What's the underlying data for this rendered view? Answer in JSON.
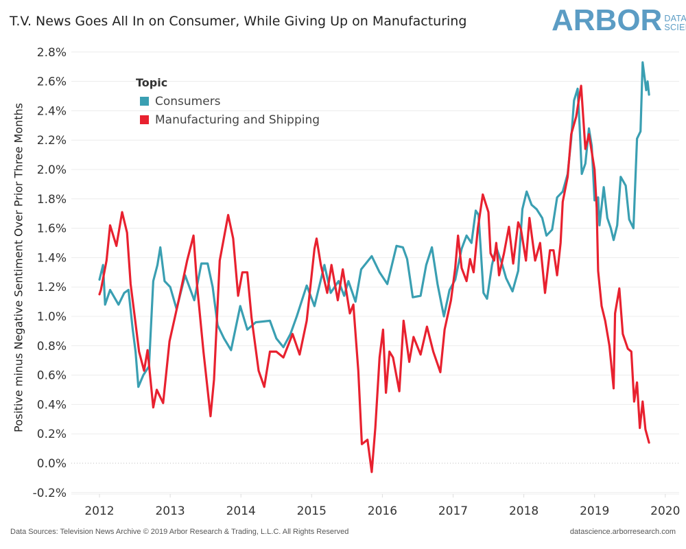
{
  "header": {
    "title": "T.V. News Goes All In on Consumer, While Giving Up on Manufacturing",
    "logo_main": "ARBOR",
    "logo_line1": "DATA",
    "logo_line2": "SCIENCE",
    "logo_color": "#5b9cc4"
  },
  "footer": {
    "source": "Data Sources: Television News Archive © 2019 Arbor Research & Trading, L.L.C. All Rights Reserved",
    "site": "datascience.arborresearch.com"
  },
  "chart_data": {
    "type": "line",
    "title": "T.V. News Goes All In on Consumer, While Giving Up on Manufacturing",
    "xlabel": "",
    "ylabel": "Positive minus Negative Sentiment Over Prior Three Months",
    "xlim": [
      2011.6,
      2020.2
    ],
    "ylim": [
      -0.2,
      2.8
    ],
    "x_ticks": [
      "2012",
      "2013",
      "2014",
      "2015",
      "2016",
      "2017",
      "2018",
      "2019",
      "2020"
    ],
    "y_ticks": [
      "-0.2%",
      "0.0%",
      "0.2%",
      "0.4%",
      "0.6%",
      "0.8%",
      "1.0%",
      "1.2%",
      "1.4%",
      "1.6%",
      "1.8%",
      "2.0%",
      "2.2%",
      "2.4%",
      "2.6%",
      "2.8%"
    ],
    "grid": true,
    "legend": {
      "title": "Topic",
      "placement": "top-left"
    },
    "series": [
      {
        "name": "Consumers",
        "color": "#3a9fb2",
        "points": [
          [
            2012.0,
            1.25
          ],
          [
            2012.05,
            1.35
          ],
          [
            2012.08,
            1.08
          ],
          [
            2012.15,
            1.18
          ],
          [
            2012.27,
            1.08
          ],
          [
            2012.35,
            1.16
          ],
          [
            2012.41,
            1.18
          ],
          [
            2012.47,
            0.91
          ],
          [
            2012.51,
            0.76
          ],
          [
            2012.55,
            0.52
          ],
          [
            2012.62,
            0.6
          ],
          [
            2012.7,
            0.66
          ],
          [
            2012.76,
            1.24
          ],
          [
            2012.82,
            1.35
          ],
          [
            2012.86,
            1.47
          ],
          [
            2012.92,
            1.24
          ],
          [
            2013.0,
            1.2
          ],
          [
            2013.09,
            1.05
          ],
          [
            2013.21,
            1.28
          ],
          [
            2013.34,
            1.11
          ],
          [
            2013.44,
            1.36
          ],
          [
            2013.53,
            1.36
          ],
          [
            2013.6,
            1.2
          ],
          [
            2013.67,
            0.94
          ],
          [
            2013.76,
            0.85
          ],
          [
            2013.86,
            0.77
          ],
          [
            2013.99,
            1.07
          ],
          [
            2014.09,
            0.91
          ],
          [
            2014.21,
            0.96
          ],
          [
            2014.41,
            0.97
          ],
          [
            2014.5,
            0.85
          ],
          [
            2014.6,
            0.79
          ],
          [
            2014.7,
            0.88
          ],
          [
            2014.79,
            1.0
          ],
          [
            2014.93,
            1.21
          ],
          [
            2015.04,
            1.07
          ],
          [
            2015.18,
            1.35
          ],
          [
            2015.27,
            1.16
          ],
          [
            2015.38,
            1.24
          ],
          [
            2015.46,
            1.14
          ],
          [
            2015.52,
            1.24
          ],
          [
            2015.62,
            1.1
          ],
          [
            2015.7,
            1.32
          ],
          [
            2015.85,
            1.41
          ],
          [
            2015.96,
            1.3
          ],
          [
            2016.07,
            1.22
          ],
          [
            2016.2,
            1.48
          ],
          [
            2016.29,
            1.47
          ],
          [
            2016.35,
            1.39
          ],
          [
            2016.43,
            1.13
          ],
          [
            2016.54,
            1.14
          ],
          [
            2016.62,
            1.35
          ],
          [
            2016.7,
            1.47
          ],
          [
            2016.78,
            1.22
          ],
          [
            2016.87,
            1.0
          ],
          [
            2016.95,
            1.18
          ],
          [
            2017.03,
            1.25
          ],
          [
            2017.12,
            1.46
          ],
          [
            2017.19,
            1.55
          ],
          [
            2017.26,
            1.5
          ],
          [
            2017.32,
            1.72
          ],
          [
            2017.36,
            1.69
          ],
          [
            2017.43,
            1.16
          ],
          [
            2017.48,
            1.12
          ],
          [
            2017.55,
            1.35
          ],
          [
            2017.61,
            1.47
          ],
          [
            2017.69,
            1.36
          ],
          [
            2017.75,
            1.26
          ],
          [
            2017.84,
            1.17
          ],
          [
            2017.92,
            1.31
          ],
          [
            2017.98,
            1.73
          ],
          [
            2018.04,
            1.85
          ],
          [
            2018.11,
            1.76
          ],
          [
            2018.18,
            1.73
          ],
          [
            2018.26,
            1.67
          ],
          [
            2018.32,
            1.55
          ],
          [
            2018.4,
            1.59
          ],
          [
            2018.47,
            1.81
          ],
          [
            2018.55,
            1.85
          ],
          [
            2018.62,
            1.97
          ],
          [
            2018.67,
            2.21
          ],
          [
            2018.71,
            2.47
          ],
          [
            2018.76,
            2.55
          ],
          [
            2018.79,
            2.29
          ],
          [
            2018.82,
            1.97
          ],
          [
            2018.87,
            2.04
          ],
          [
            2018.92,
            2.28
          ],
          [
            2018.96,
            2.16
          ],
          [
            2019.0,
            1.79
          ],
          [
            2019.05,
            1.81
          ],
          [
            2019.07,
            1.62
          ],
          [
            2019.13,
            1.88
          ],
          [
            2019.18,
            1.67
          ],
          [
            2019.23,
            1.6
          ],
          [
            2019.27,
            1.52
          ],
          [
            2019.32,
            1.62
          ],
          [
            2019.37,
            1.95
          ],
          [
            2019.44,
            1.89
          ],
          [
            2019.49,
            1.66
          ],
          [
            2019.55,
            1.6
          ],
          [
            2019.6,
            2.21
          ],
          [
            2019.65,
            2.26
          ],
          [
            2019.68,
            2.73
          ],
          [
            2019.73,
            2.54
          ],
          [
            2019.75,
            2.6
          ],
          [
            2019.77,
            2.51
          ]
        ]
      },
      {
        "name": "Manufacturing and Shipping",
        "color": "#e8212f",
        "points": [
          [
            2012.0,
            1.15
          ],
          [
            2012.02,
            1.18
          ],
          [
            2012.1,
            1.38
          ],
          [
            2012.15,
            1.62
          ],
          [
            2012.24,
            1.48
          ],
          [
            2012.32,
            1.71
          ],
          [
            2012.39,
            1.57
          ],
          [
            2012.44,
            1.22
          ],
          [
            2012.5,
            0.99
          ],
          [
            2012.56,
            0.76
          ],
          [
            2012.63,
            0.63
          ],
          [
            2012.68,
            0.77
          ],
          [
            2012.76,
            0.38
          ],
          [
            2012.81,
            0.5
          ],
          [
            2012.9,
            0.41
          ],
          [
            2012.99,
            0.83
          ],
          [
            2013.12,
            1.11
          ],
          [
            2013.24,
            1.38
          ],
          [
            2013.33,
            1.55
          ],
          [
            2013.38,
            1.21
          ],
          [
            2013.47,
            0.76
          ],
          [
            2013.57,
            0.32
          ],
          [
            2013.62,
            0.57
          ],
          [
            2013.7,
            1.38
          ],
          [
            2013.82,
            1.69
          ],
          [
            2013.89,
            1.53
          ],
          [
            2013.96,
            1.14
          ],
          [
            2014.02,
            1.3
          ],
          [
            2014.09,
            1.3
          ],
          [
            2014.15,
            0.99
          ],
          [
            2014.25,
            0.63
          ],
          [
            2014.33,
            0.52
          ],
          [
            2014.41,
            0.76
          ],
          [
            2014.5,
            0.76
          ],
          [
            2014.6,
            0.72
          ],
          [
            2014.73,
            0.88
          ],
          [
            2014.83,
            0.74
          ],
          [
            2014.93,
            0.97
          ],
          [
            2015.04,
            1.46
          ],
          [
            2015.07,
            1.53
          ],
          [
            2015.13,
            1.35
          ],
          [
            2015.22,
            1.16
          ],
          [
            2015.28,
            1.35
          ],
          [
            2015.37,
            1.11
          ],
          [
            2015.44,
            1.32
          ],
          [
            2015.54,
            1.02
          ],
          [
            2015.59,
            1.08
          ],
          [
            2015.66,
            0.63
          ],
          [
            2015.71,
            0.13
          ],
          [
            2015.79,
            0.16
          ],
          [
            2015.85,
            -0.06
          ],
          [
            2015.9,
            0.24
          ],
          [
            2015.96,
            0.72
          ],
          [
            2016.01,
            0.91
          ],
          [
            2016.05,
            0.48
          ],
          [
            2016.1,
            0.76
          ],
          [
            2016.15,
            0.72
          ],
          [
            2016.24,
            0.49
          ],
          [
            2016.3,
            0.97
          ],
          [
            2016.38,
            0.69
          ],
          [
            2016.44,
            0.86
          ],
          [
            2016.54,
            0.74
          ],
          [
            2016.63,
            0.93
          ],
          [
            2016.72,
            0.76
          ],
          [
            2016.82,
            0.62
          ],
          [
            2016.88,
            0.91
          ],
          [
            2016.97,
            1.11
          ],
          [
            2017.03,
            1.33
          ],
          [
            2017.07,
            1.55
          ],
          [
            2017.12,
            1.33
          ],
          [
            2017.19,
            1.24
          ],
          [
            2017.24,
            1.39
          ],
          [
            2017.29,
            1.3
          ],
          [
            2017.35,
            1.6
          ],
          [
            2017.42,
            1.83
          ],
          [
            2017.5,
            1.71
          ],
          [
            2017.53,
            1.43
          ],
          [
            2017.58,
            1.38
          ],
          [
            2017.61,
            1.5
          ],
          [
            2017.65,
            1.28
          ],
          [
            2017.72,
            1.43
          ],
          [
            2017.79,
            1.61
          ],
          [
            2017.85,
            1.36
          ],
          [
            2017.92,
            1.64
          ],
          [
            2017.96,
            1.59
          ],
          [
            2018.03,
            1.38
          ],
          [
            2018.08,
            1.67
          ],
          [
            2018.16,
            1.38
          ],
          [
            2018.23,
            1.5
          ],
          [
            2018.3,
            1.16
          ],
          [
            2018.37,
            1.45
          ],
          [
            2018.42,
            1.45
          ],
          [
            2018.47,
            1.28
          ],
          [
            2018.52,
            1.5
          ],
          [
            2018.55,
            1.78
          ],
          [
            2018.62,
            1.95
          ],
          [
            2018.67,
            2.24
          ],
          [
            2018.74,
            2.36
          ],
          [
            2018.81,
            2.57
          ],
          [
            2018.87,
            2.14
          ],
          [
            2018.92,
            2.24
          ],
          [
            2019.0,
            2.0
          ],
          [
            2019.03,
            1.74
          ],
          [
            2019.05,
            1.31
          ],
          [
            2019.1,
            1.07
          ],
          [
            2019.15,
            0.97
          ],
          [
            2019.21,
            0.8
          ],
          [
            2019.27,
            0.51
          ],
          [
            2019.29,
            1.02
          ],
          [
            2019.35,
            1.19
          ],
          [
            2019.4,
            0.88
          ],
          [
            2019.47,
            0.78
          ],
          [
            2019.52,
            0.76
          ],
          [
            2019.56,
            0.42
          ],
          [
            2019.6,
            0.55
          ],
          [
            2019.64,
            0.24
          ],
          [
            2019.68,
            0.42
          ],
          [
            2019.72,
            0.23
          ],
          [
            2019.77,
            0.14
          ]
        ]
      }
    ]
  }
}
